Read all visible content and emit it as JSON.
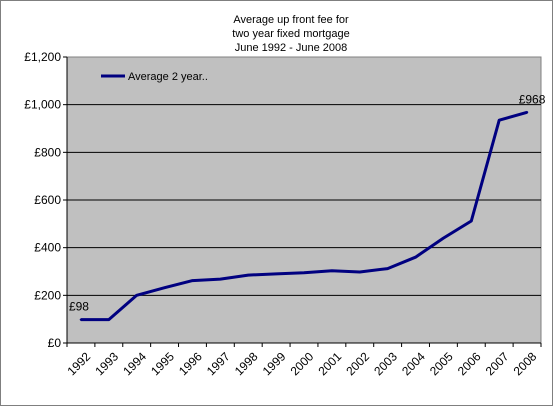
{
  "chart_data": {
    "type": "line",
    "title_lines": [
      "Average up front fee for",
      "two year fixed mortgage",
      "June 1992 - June 2008"
    ],
    "categories": [
      "1992",
      "1993",
      "1994",
      "1995",
      "1996",
      "1997",
      "1998",
      "1999",
      "2000",
      "2001",
      "2002",
      "2003",
      "2004",
      "2005",
      "2006",
      "2007",
      "2008"
    ],
    "series": [
      {
        "name": "Average 2 year..",
        "color": "#000080",
        "values": [
          98,
          98,
          200,
          232,
          262,
          268,
          285,
          290,
          295,
          303,
          298,
          312,
          360,
          440,
          512,
          935,
          968
        ]
      }
    ],
    "y_ticks": [
      "£0",
      "£200",
      "£400",
      "£600",
      "£800",
      "£1,000",
      "£1,200"
    ],
    "ylim": [
      0,
      1200
    ],
    "xlabel": "",
    "ylabel": "",
    "data_labels": [
      {
        "index": 0,
        "text": "£98"
      },
      {
        "index": 16,
        "text": "£968"
      }
    ],
    "grid": true,
    "legend_position": "top-left",
    "plot_background": "#c0c0c0",
    "gridline_color": "#000000"
  }
}
